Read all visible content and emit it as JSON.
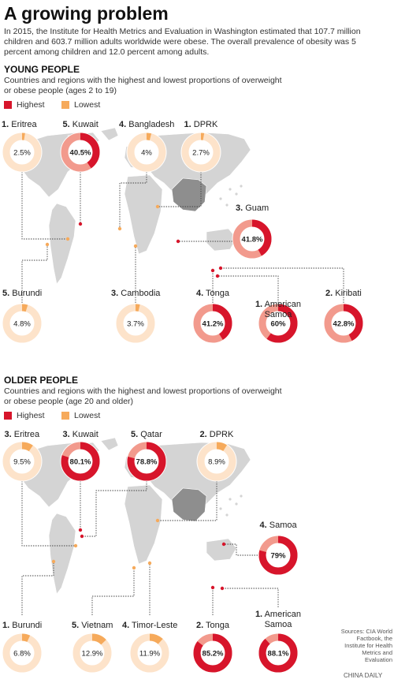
{
  "header": {
    "title": "A growing problem",
    "intro": "In 2015, the Institute for Health Metrics and Evaluation in Washington estimated that 107.7 million children and 603.7 million adults worldwide were obese. The overall prevalence of obesity was 5 percent among children and 12.0 percent among adults."
  },
  "legend": {
    "highest": "Highest",
    "lowest": "Lowest"
  },
  "colors": {
    "highest": "#d7152b",
    "highest_light": "#f29a8d",
    "lowest": "#f6aa5b",
    "lowest_light": "#fde3ca",
    "map_land": "#d4d4d4",
    "china": "#8e8e8e"
  },
  "chart_data": [
    {
      "type": "pie",
      "title": "YOUNG PEOPLE",
      "subtitle": "Countries and regions with the highest and lowest proportions of overweight or obese people (ages 2 to 19)",
      "unit": "%",
      "series": [
        {
          "rank": "1.",
          "name": "Eritrea",
          "value": 2.5,
          "label": "2.5%",
          "group": "lowest"
        },
        {
          "rank": "5.",
          "name": "Kuwait",
          "value": 40.5,
          "label": "40.5%",
          "group": "highest"
        },
        {
          "rank": "4.",
          "name": "Bangladesh",
          "value": 4,
          "label": "4%",
          "group": "lowest"
        },
        {
          "rank": "1.",
          "name": "DPRK",
          "value": 2.7,
          "label": "2.7%",
          "group": "lowest"
        },
        {
          "rank": "3.",
          "name": "Guam",
          "value": 41.8,
          "label": "41.8%",
          "group": "highest"
        },
        {
          "rank": "5.",
          "name": "Burundi",
          "value": 4.8,
          "label": "4.8%",
          "group": "lowest"
        },
        {
          "rank": "3.",
          "name": "Cambodia",
          "value": 3.7,
          "label": "3.7%",
          "group": "lowest"
        },
        {
          "rank": "4.",
          "name": "Tonga",
          "value": 41.2,
          "label": "41.2%",
          "group": "highest"
        },
        {
          "rank": "1.",
          "name": "American Samoa",
          "value": 60,
          "label": "60%",
          "group": "highest"
        },
        {
          "rank": "2.",
          "name": "Kiribati",
          "value": 42.8,
          "label": "42.8%",
          "group": "highest"
        }
      ]
    },
    {
      "type": "pie",
      "title": "OLDER PEOPLE",
      "subtitle": "Countries and regions with the highest and lowest proportions of overweight or obese people (age 20 and older)",
      "unit": "%",
      "series": [
        {
          "rank": "3.",
          "name": "Eritrea",
          "value": 9.5,
          "label": "9.5%",
          "group": "lowest"
        },
        {
          "rank": "3.",
          "name": "Kuwait",
          "value": 80.1,
          "label": "80.1%",
          "group": "highest"
        },
        {
          "rank": "5.",
          "name": "Qatar",
          "value": 78.8,
          "label": "78.8%",
          "group": "highest"
        },
        {
          "rank": "2.",
          "name": "DPRK",
          "value": 8.9,
          "label": "8.9%",
          "group": "lowest"
        },
        {
          "rank": "4.",
          "name": "Samoa",
          "value": 79,
          "label": "79%",
          "group": "highest"
        },
        {
          "rank": "1.",
          "name": "Burundi",
          "value": 6.8,
          "label": "6.8%",
          "group": "lowest"
        },
        {
          "rank": "5.",
          "name": "Vietnam",
          "value": 12.9,
          "label": "12.9%",
          "group": "lowest"
        },
        {
          "rank": "4.",
          "name": "Timor-Leste",
          "value": 11.9,
          "label": "11.9%",
          "group": "lowest"
        },
        {
          "rank": "2.",
          "name": "Tonga",
          "value": 85.2,
          "label": "85.2%",
          "group": "highest"
        },
        {
          "rank": "1.",
          "name": "American Samoa",
          "value": 88.1,
          "label": "88.1%",
          "group": "highest"
        }
      ]
    }
  ],
  "footer": {
    "sources": "Sources: CIA World Factbook, the Institute for Health Metrics and Evaluation",
    "credit": "CHINA DAILY"
  }
}
